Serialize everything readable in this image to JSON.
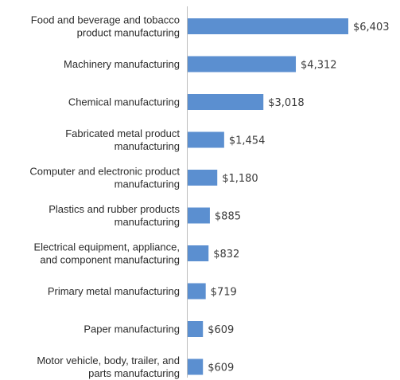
{
  "chart_data": {
    "type": "bar",
    "orientation": "horizontal",
    "categories": [
      [
        "Food and beverage and tobacco",
        "product manufacturing"
      ],
      [
        "Machinery manufacturing"
      ],
      [
        "Chemical manufacturing"
      ],
      [
        "Fabricated metal product",
        "manufacturing"
      ],
      [
        "Computer and electronic product",
        "manufacturing"
      ],
      [
        "Plastics and rubber products",
        "manufacturing"
      ],
      [
        "Electrical equipment, appliance,",
        "and component manufacturing"
      ],
      [
        "Primary metal manufacturing"
      ],
      [
        "Paper manufacturing"
      ],
      [
        "Motor vehicle, body, trailer, and",
        "parts manufacturing"
      ]
    ],
    "values": [
      6403,
      4312,
      3018,
      1454,
      1180,
      885,
      832,
      719,
      609,
      609
    ],
    "value_labels": [
      "$6,403",
      "$4,312",
      "$3,018",
      "$1,454",
      "$1,180",
      "$885",
      "$832",
      "$719",
      "$609",
      "$609"
    ],
    "bar_color": "#5b8fd0",
    "title": "",
    "xlabel": "",
    "ylabel": "",
    "grid": false,
    "legend": "none"
  }
}
